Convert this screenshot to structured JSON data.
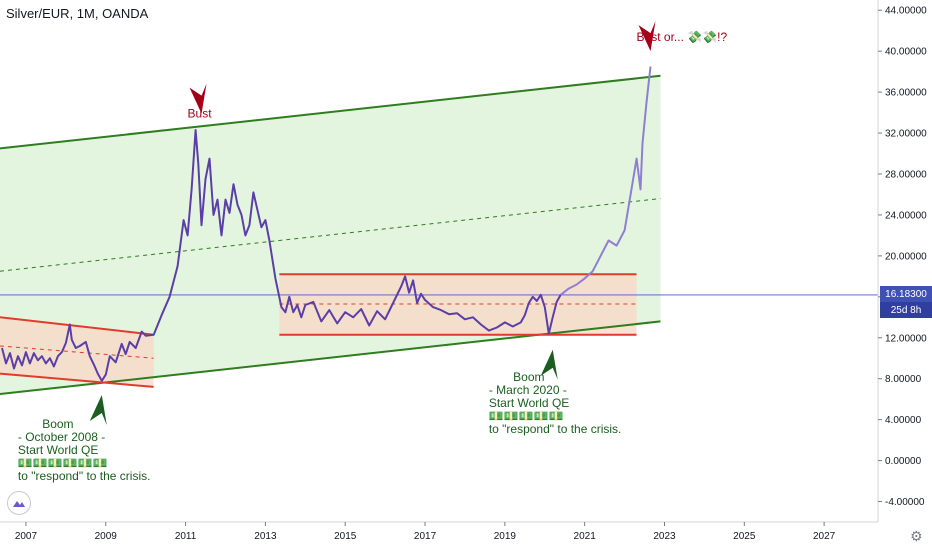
{
  "header": {
    "title": "Silver/EUR, 1M, OANDA"
  },
  "price": {
    "last": "16.18300",
    "countdown": "25d 8h",
    "value": 16.183
  },
  "colors": {
    "price_line": "#5b3ea6",
    "projection_line": "#8f7fd0",
    "channel": "#2e7d1e",
    "range": "#e03c2c",
    "annot_green": "#1b5e20",
    "annot_red": "#a5001a",
    "channel_fill": "#d9f2d3",
    "range_fill": "#f8d7c6",
    "price_tag": "#3f51b5"
  },
  "chart_data": {
    "type": "line",
    "title": "",
    "xlabel": "",
    "ylabel": "",
    "xlim": [
      2006.35,
      2028.35
    ],
    "ylim": [
      -6,
      45
    ],
    "y_ticks": [
      "-4.00000",
      "0.00000",
      "4.00000",
      "8.00000",
      "12.00000",
      "16.00000",
      "20.00000",
      "24.00000",
      "28.00000",
      "32.00000",
      "36.00000",
      "40.00000",
      "44.00000"
    ],
    "x_ticks": [
      "2007",
      "2009",
      "2011",
      "2013",
      "2015",
      "2017",
      "2019",
      "2021",
      "2023",
      "2025",
      "2027"
    ],
    "grid": false,
    "series": [
      {
        "x": [
          2006.4,
          2006.5,
          2006.6,
          2006.7,
          2006.8,
          2006.9,
          2007.0,
          2007.1,
          2007.2,
          2007.3,
          2007.4,
          2007.5,
          2007.6,
          2007.7,
          2007.8,
          2007.9,
          2008.0,
          2008.1,
          2008.15,
          2008.25,
          2008.35,
          2008.5,
          2008.6,
          2008.7,
          2008.8,
          2008.9,
          2009.0,
          2009.1,
          2009.25,
          2009.4,
          2009.5,
          2009.6,
          2009.75,
          2009.9,
          2010.0,
          2010.2,
          2010.4,
          2010.6,
          2010.8,
          2010.95,
          2011.05,
          2011.15,
          2011.25,
          2011.32,
          2011.4,
          2011.5,
          2011.6,
          2011.7,
          2011.8,
          2011.9,
          2012.0,
          2012.1,
          2012.2,
          2012.3,
          2012.4,
          2012.5,
          2012.6,
          2012.7,
          2012.8,
          2012.9,
          2013.0,
          2013.1,
          2013.25,
          2013.4,
          2013.5,
          2013.6,
          2013.7,
          2013.8,
          2013.9,
          2014.0,
          2014.2,
          2014.4,
          2014.6,
          2014.8,
          2015.0,
          2015.2,
          2015.4,
          2015.6,
          2015.8,
          2016.0,
          2016.2,
          2016.4,
          2016.5,
          2016.6,
          2016.7,
          2016.8,
          2016.9,
          2017.0,
          2017.2,
          2017.4,
          2017.6,
          2017.8,
          2018.0,
          2018.2,
          2018.4,
          2018.6,
          2018.8,
          2019.0,
          2019.2,
          2019.4,
          2019.5,
          2019.6,
          2019.7,
          2019.8,
          2019.9,
          2020.0,
          2020.1,
          2020.2,
          2020.3,
          2020.4
        ],
        "y": [
          11.0,
          9.5,
          10.5,
          9.0,
          10.2,
          9.3,
          10.6,
          9.5,
          10.5,
          9.8,
          10.2,
          9.5,
          10.0,
          9.2,
          10.2,
          10.6,
          11.5,
          13.3,
          11.8,
          11.0,
          11.2,
          11.6,
          10.2,
          9.4,
          8.5,
          7.8,
          8.4,
          10.2,
          9.6,
          11.4,
          10.4,
          11.6,
          11.0,
          12.6,
          12.2,
          12.3,
          14.2,
          16.0,
          19.0,
          23.5,
          22.0,
          26.5,
          32.3,
          29.0,
          23.0,
          27.5,
          29.5,
          24.0,
          25.5,
          22.0,
          25.5,
          24.2,
          27.0,
          25.0,
          24.0,
          22.0,
          23.0,
          26.2,
          24.5,
          22.8,
          23.5,
          21.5,
          17.8,
          15.0,
          14.5,
          16.0,
          14.5,
          15.2,
          14.0,
          15.2,
          15.5,
          13.6,
          14.7,
          13.4,
          14.5,
          14.0,
          14.8,
          13.2,
          14.6,
          13.8,
          15.4,
          17.0,
          18.0,
          16.4,
          17.6,
          15.4,
          16.3,
          15.7,
          15.0,
          14.7,
          14.3,
          14.4,
          13.8,
          14.0,
          13.3,
          12.7,
          13.0,
          13.5,
          13.1,
          13.5,
          14.2,
          15.4,
          16.0,
          15.6,
          16.2,
          15.0,
          12.4,
          14.0,
          15.5,
          16.2
        ]
      },
      {
        "x": [
          2020.4,
          2020.6,
          2020.8,
          2021.0,
          2021.2,
          2021.4,
          2021.6,
          2021.8,
          2022.0,
          2022.15,
          2022.3,
          2022.4,
          2022.45,
          2022.55,
          2022.65
        ],
        "y": [
          16.2,
          16.8,
          17.2,
          17.8,
          18.5,
          20.0,
          21.5,
          21.0,
          22.5,
          26.0,
          29.5,
          26.5,
          31.0,
          35.0,
          38.5
        ]
      }
    ],
    "overlays": {
      "channel_upper": {
        "x": [
          2006.35,
          2022.9
        ],
        "y": [
          30.5,
          37.6
        ]
      },
      "channel_lower": {
        "x": [
          2006.35,
          2022.9
        ],
        "y": [
          6.5,
          13.6
        ]
      },
      "channel_mid": {
        "x": [
          2006.35,
          2022.9
        ],
        "y": [
          18.5,
          25.6
        ]
      },
      "range_upper": {
        "x": [
          2013.35,
          2022.3
        ],
        "y": [
          18.2,
          18.2
        ]
      },
      "range_lower": {
        "x": [
          2013.35,
          2022.3
        ],
        "y": [
          12.3,
          12.3
        ]
      },
      "range_mid": {
        "x": [
          2013.35,
          2022.3
        ],
        "y": [
          15.3,
          15.3
        ]
      },
      "early_upper": {
        "x": [
          2006.35,
          2010.2
        ],
        "y": [
          14.0,
          12.3
        ]
      },
      "early_lower": {
        "x": [
          2006.35,
          2010.2
        ],
        "y": [
          8.5,
          7.2
        ]
      },
      "early_mid": {
        "x": [
          2006.35,
          2010.2
        ],
        "y": [
          11.2,
          10.0
        ]
      }
    },
    "annotations": [
      {
        "id": "bust-2011",
        "lines": [
          "Bust"
        ],
        "x": 2011.35,
        "y": 33.5,
        "color": "red"
      },
      {
        "id": "bust-2022",
        "lines": [
          "Bust or... 💸💸!?"
        ],
        "x": 2022.3,
        "y": 41.0,
        "color": "red",
        "align": "left"
      },
      {
        "id": "boom-2008",
        "lines": [
          "Boom",
          "- October 2008 -",
          "Start World QE",
          "💵💵💵💵💵💵",
          "to \"respond\" to the crisis."
        ],
        "x": 2007.5,
        "y": 3.2,
        "color": "green"
      },
      {
        "id": "boom-2020",
        "lines": [
          "Boom",
          "- March 2020 -",
          "Start World QE",
          "💵💵💵💵💵",
          "to \"respond\" to the crisis."
        ],
        "x": 2019.3,
        "y": 7.8,
        "color": "green"
      }
    ]
  }
}
